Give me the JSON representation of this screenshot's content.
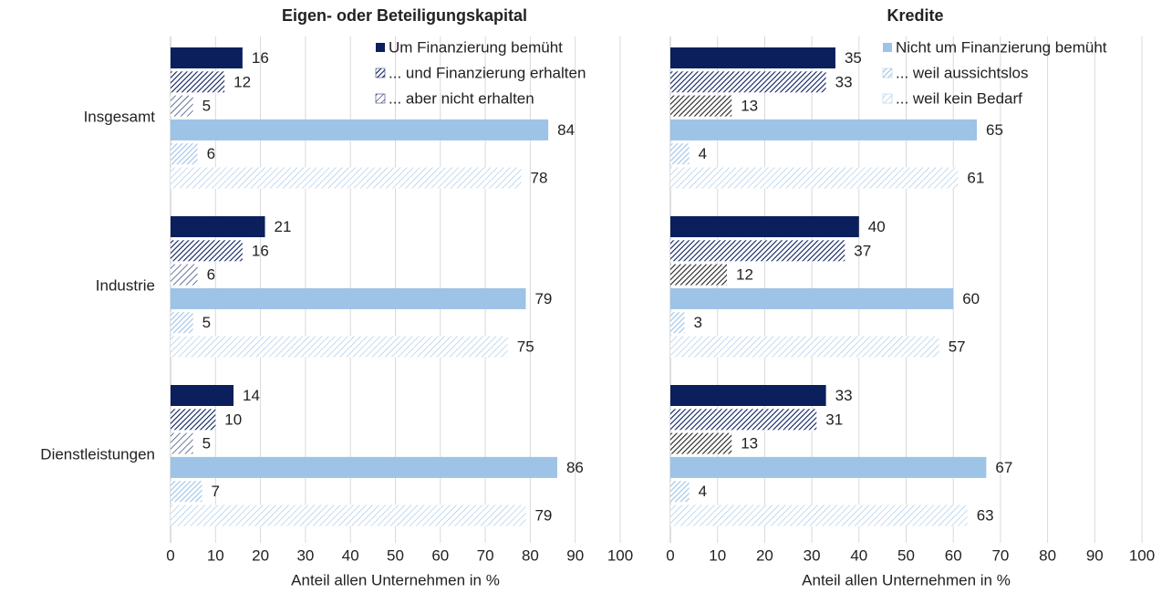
{
  "chart_data": [
    {
      "type": "bar",
      "orientation": "horizontal",
      "title": "Eigen- oder Beteiligungskapital",
      "xlabel": "Anteil allen Unternehmen  in %",
      "categories": [
        "Insgesamt",
        "Industrie",
        "Dienstleistungen"
      ],
      "xlim": [
        0,
        100
      ],
      "xticks": [
        0,
        10,
        20,
        30,
        40,
        50,
        60,
        70,
        80,
        90,
        100
      ],
      "grid": true,
      "legend": "upper right",
      "series": [
        {
          "name": "Um Finanzierung bemüht",
          "color": "#0b1f5c",
          "pattern": "solid",
          "values": [
            16,
            21,
            14
          ]
        },
        {
          "name": "... und Finanzierung erhalten",
          "color": "#0b1f5c",
          "pattern": "hatch",
          "values": [
            12,
            16,
            10
          ]
        },
        {
          "name": "... aber nicht erhalten",
          "color": "#0b1f5c",
          "pattern": "hatch-light",
          "values": [
            5,
            6,
            5
          ]
        },
        {
          "color": "#9dc3e6",
          "pattern": "solid",
          "values": [
            84,
            79,
            86
          ]
        },
        {
          "color": "#9dc3e6",
          "pattern": "hatch",
          "values": [
            6,
            5,
            7
          ]
        },
        {
          "color": "#9dc3e6",
          "pattern": "hatch-light",
          "values": [
            78,
            75,
            79
          ]
        }
      ]
    },
    {
      "type": "bar",
      "orientation": "horizontal",
      "title": "Kredite",
      "xlabel": "Anteil allen Unternehmen  in %",
      "xlim": [
        0,
        100
      ],
      "xticks": [
        0,
        10,
        20,
        30,
        40,
        50,
        60,
        70,
        80,
        90,
        100
      ],
      "grid": true,
      "legend": "upper right",
      "series": [
        {
          "color": "#0b1f5c",
          "pattern": "solid",
          "values": [
            35,
            40,
            33
          ]
        },
        {
          "color": "#0b1f5c",
          "pattern": "hatch",
          "values": [
            33,
            37,
            31
          ]
        },
        {
          "color": "#222222",
          "pattern": "hatch",
          "values": [
            13,
            12,
            13
          ]
        },
        {
          "name": "Nicht um Finanzierung bemüht",
          "color": "#9dc3e6",
          "pattern": "solid",
          "values": [
            65,
            60,
            67
          ]
        },
        {
          "name": "... weil aussichtslos",
          "color": "#9dc3e6",
          "pattern": "hatch",
          "values": [
            4,
            3,
            4
          ]
        },
        {
          "name": "... weil kein Bedarf",
          "color": "#9dc3e6",
          "pattern": "hatch-light",
          "values": [
            61,
            57,
            63
          ]
        }
      ]
    }
  ]
}
